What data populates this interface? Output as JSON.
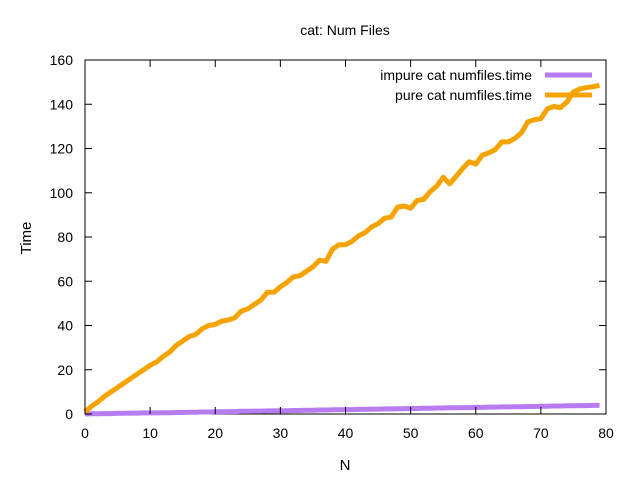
{
  "chart_data": {
    "type": "line",
    "title": "cat: Num Files",
    "xlabel": "N",
    "ylabel": "Time",
    "xlim": [
      0,
      80
    ],
    "ylim": [
      0,
      160
    ],
    "x_ticks": [
      0,
      10,
      20,
      30,
      40,
      50,
      60,
      70,
      80
    ],
    "y_ticks": [
      0,
      20,
      40,
      60,
      80,
      100,
      120,
      140,
      160
    ],
    "grid": false,
    "legend_position": "top-right",
    "series": [
      {
        "name": "impure cat numfiles.time",
        "color": "#b77cf0",
        "x": [
          0,
          1,
          2,
          3,
          4,
          5,
          6,
          7,
          8,
          9,
          10,
          11,
          12,
          13,
          14,
          15,
          16,
          17,
          18,
          19,
          20,
          21,
          22,
          23,
          24,
          25,
          26,
          27,
          28,
          29,
          30,
          31,
          32,
          33,
          34,
          35,
          36,
          37,
          38,
          39,
          40,
          41,
          42,
          43,
          44,
          45,
          46,
          47,
          48,
          49,
          50,
          51,
          52,
          53,
          54,
          55,
          56,
          57,
          58,
          59,
          60,
          61,
          62,
          63,
          64,
          65,
          66,
          67,
          68,
          69,
          70,
          71,
          72,
          73,
          74,
          75,
          76,
          77,
          78,
          79
        ],
        "y": [
          0.0,
          0.1,
          0.1,
          0.2,
          0.2,
          0.3,
          0.3,
          0.4,
          0.4,
          0.5,
          0.5,
          0.5,
          0.6,
          0.6,
          0.7,
          0.7,
          0.8,
          0.8,
          0.9,
          0.9,
          1.0,
          1.0,
          1.1,
          1.1,
          1.2,
          1.2,
          1.3,
          1.3,
          1.4,
          1.4,
          1.5,
          1.5,
          1.6,
          1.6,
          1.7,
          1.7,
          1.8,
          1.8,
          1.9,
          1.9,
          2.0,
          2.0,
          2.1,
          2.1,
          2.2,
          2.2,
          2.3,
          2.3,
          2.4,
          2.4,
          2.5,
          2.5,
          2.6,
          2.6,
          2.7,
          2.7,
          2.8,
          2.8,
          2.9,
          2.9,
          3.0,
          3.0,
          3.1,
          3.1,
          3.2,
          3.2,
          3.3,
          3.3,
          3.4,
          3.4,
          3.5,
          3.5,
          3.6,
          3.6,
          3.7,
          3.7,
          3.8,
          3.8,
          3.9,
          3.9
        ]
      },
      {
        "name": "pure cat numfiles.time",
        "color": "#f5a300",
        "x": [
          0,
          1,
          2,
          3,
          4,
          5,
          6,
          7,
          8,
          9,
          10,
          11,
          12,
          13,
          14,
          15,
          16,
          17,
          18,
          19,
          20,
          21,
          22,
          23,
          24,
          25,
          26,
          27,
          28,
          29,
          30,
          31,
          32,
          33,
          34,
          35,
          36,
          37,
          38,
          39,
          40,
          41,
          42,
          43,
          44,
          45,
          46,
          47,
          48,
          49,
          50,
          51,
          52,
          53,
          54,
          55,
          56,
          57,
          58,
          59,
          60,
          61,
          62,
          63,
          64,
          65,
          66,
          67,
          68,
          69,
          70,
          71,
          72,
          73,
          74,
          75,
          76,
          77,
          78,
          79
        ],
        "y": [
          1.0,
          3.5,
          5.5,
          8.0,
          10.0,
          12.0,
          14.0,
          16.0,
          18.0,
          20.0,
          22.0,
          23.5,
          26.0,
          28.0,
          31.0,
          33.0,
          35.0,
          36.0,
          38.5,
          40.0,
          40.5,
          42.0,
          42.5,
          43.5,
          46.5,
          47.5,
          49.5,
          51.5,
          55.0,
          55.0,
          57.5,
          59.5,
          62.0,
          62.5,
          64.5,
          66.5,
          69.5,
          69.0,
          74.5,
          76.5,
          76.5,
          78.0,
          80.5,
          82.0,
          84.5,
          86.0,
          88.5,
          89.0,
          93.5,
          94.0,
          93.0,
          96.5,
          97.0,
          100.5,
          103.0,
          107.0,
          104.0,
          107.5,
          111.0,
          114.0,
          113.0,
          117.0,
          118.0,
          119.5,
          123.0,
          123.0,
          124.5,
          127.0,
          132.0,
          133.0,
          133.5,
          138.0,
          139.0,
          138.5,
          141.0,
          145.5,
          147.0,
          147.5,
          148.0,
          148.5
        ]
      }
    ]
  }
}
